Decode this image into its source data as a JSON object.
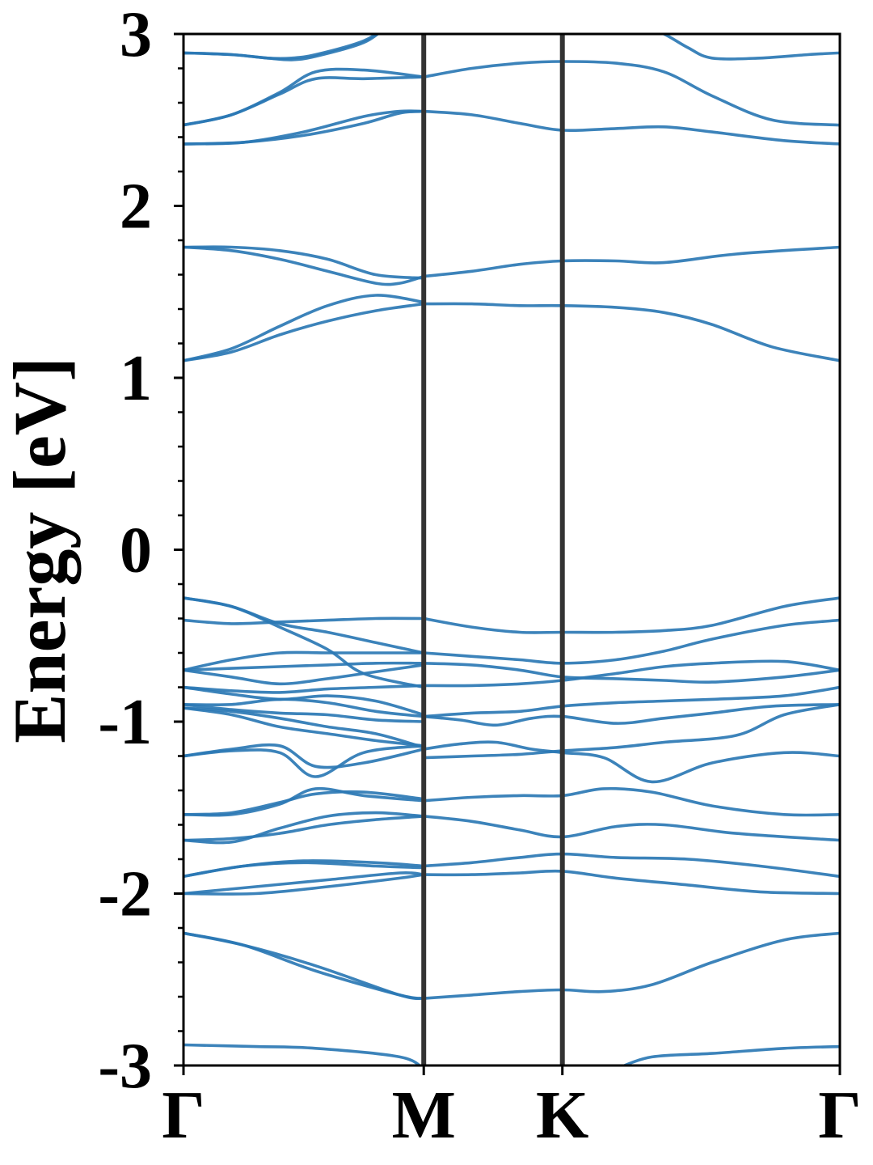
{
  "chart_data": {
    "type": "line",
    "title": "",
    "xlabel": "",
    "ylabel": "Energy [eV]",
    "ylim": [
      -3,
      3
    ],
    "yticks": [
      "3",
      "2",
      "1",
      "0",
      "-1",
      "-2",
      "-3"
    ],
    "ytick_values": [
      3,
      2,
      1,
      0,
      -1,
      -2,
      -3
    ],
    "minor_yticks_per_major": 4,
    "high_symbol_points": [
      {
        "label": "Γ",
        "k": 0
      },
      {
        "label": "M",
        "k": 1
      },
      {
        "label": "K",
        "k": 1.577
      },
      {
        "label": "Γ",
        "k": 2.732
      }
    ],
    "xlim": [
      0,
      2.732
    ],
    "band_color": "#2b78b4",
    "symline_color": "#333333",
    "grid": false,
    "legend": "none",
    "series": [
      {
        "x": [
          0,
          0.3,
          0.55,
          0.9,
          1.0
        ],
        "values": [
          -2.88,
          -2.89,
          -2.9,
          -2.95,
          -3.02
        ]
      },
      {
        "x": [
          1.8,
          1.95,
          2.2,
          2.5,
          2.732
        ],
        "values": [
          -3.02,
          -2.95,
          -2.93,
          -2.9,
          -2.89
        ]
      },
      {
        "x": [
          0,
          0.25,
          0.55,
          0.9,
          1.0
        ],
        "values": [
          -2.23,
          -2.3,
          -2.45,
          -2.59,
          -2.61
        ]
      },
      {
        "x": [
          0,
          0.25,
          0.55,
          0.9,
          1.0
        ],
        "values": [
          -2.23,
          -2.3,
          -2.42,
          -2.59,
          -2.61
        ]
      },
      {
        "x": [
          1.0,
          1.2,
          1.4,
          1.577,
          1.75,
          1.95,
          2.2,
          2.5,
          2.732
        ],
        "values": [
          -2.61,
          -2.59,
          -2.57,
          -2.56,
          -2.57,
          -2.53,
          -2.4,
          -2.27,
          -2.23
        ]
      },
      {
        "x": [
          0,
          0.3,
          0.6,
          0.9,
          1.0
        ],
        "values": [
          -2.0,
          -2.0,
          -1.96,
          -1.91,
          -1.89
        ]
      },
      {
        "x": [
          0,
          0.3,
          0.6,
          0.9,
          1.0
        ],
        "values": [
          -2.0,
          -1.96,
          -1.92,
          -1.88,
          -1.89
        ]
      },
      {
        "x": [
          1.0,
          1.2,
          1.4,
          1.577,
          1.8,
          2.1,
          2.4,
          2.732
        ],
        "values": [
          -1.89,
          -1.89,
          -1.88,
          -1.87,
          -1.91,
          -1.95,
          -1.99,
          -2.0
        ]
      },
      {
        "x": [
          0,
          0.25,
          0.5,
          0.8,
          1.0
        ],
        "values": [
          -1.9,
          -1.84,
          -1.81,
          -1.82,
          -1.84
        ]
      },
      {
        "x": [
          0,
          0.25,
          0.5,
          0.8,
          1.0
        ],
        "values": [
          -1.9,
          -1.84,
          -1.82,
          -1.84,
          -1.85
        ]
      },
      {
        "x": [
          1.0,
          1.2,
          1.4,
          1.577,
          1.8,
          2.1,
          2.4,
          2.732
        ],
        "values": [
          -1.84,
          -1.82,
          -1.79,
          -1.77,
          -1.79,
          -1.8,
          -1.84,
          -1.9
        ]
      },
      {
        "x": [
          0,
          0.2,
          0.4,
          0.6,
          0.8,
          1.0
        ],
        "values": [
          -1.69,
          -1.68,
          -1.65,
          -1.6,
          -1.57,
          -1.55
        ]
      },
      {
        "x": [
          0,
          0.2,
          0.4,
          0.6,
          0.8,
          1.0
        ],
        "values": [
          -1.69,
          -1.7,
          -1.62,
          -1.55,
          -1.53,
          -1.55
        ]
      },
      {
        "x": [
          1.0,
          1.2,
          1.4,
          1.577,
          1.8,
          2.0,
          2.3,
          2.732
        ],
        "values": [
          -1.55,
          -1.58,
          -1.63,
          -1.67,
          -1.61,
          -1.6,
          -1.65,
          -1.69
        ]
      },
      {
        "x": [
          0,
          0.2,
          0.4,
          0.55,
          0.75,
          1.0
        ],
        "values": [
          -1.54,
          -1.54,
          -1.48,
          -1.39,
          -1.43,
          -1.46
        ]
      },
      {
        "x": [
          0,
          0.2,
          0.4,
          0.55,
          0.75,
          1.0
        ],
        "values": [
          -1.54,
          -1.53,
          -1.47,
          -1.42,
          -1.41,
          -1.45
        ]
      },
      {
        "x": [
          1.0,
          1.2,
          1.4,
          1.577,
          1.75,
          1.95,
          2.2,
          2.5,
          2.732
        ],
        "values": [
          -1.46,
          -1.44,
          -1.43,
          -1.43,
          -1.39,
          -1.41,
          -1.49,
          -1.54,
          -1.54
        ]
      },
      {
        "x": [
          0,
          0.2,
          0.4,
          0.55,
          0.75,
          1.0
        ],
        "values": [
          -1.2,
          -1.16,
          -1.14,
          -1.26,
          -1.24,
          -1.16
        ]
      },
      {
        "x": [
          0,
          0.2,
          0.4,
          0.55,
          0.75,
          1.0
        ],
        "values": [
          -1.2,
          -1.17,
          -1.18,
          -1.32,
          -1.18,
          -1.14
        ]
      },
      {
        "x": [
          1.0,
          1.15,
          1.3,
          1.45,
          1.577,
          1.75,
          1.95,
          2.2,
          2.5,
          2.732
        ],
        "values": [
          -1.16,
          -1.13,
          -1.12,
          -1.16,
          -1.18,
          -1.21,
          -1.35,
          -1.24,
          -1.18,
          -1.2
        ]
      },
      {
        "x": [
          1.0,
          1.2,
          1.4,
          1.577,
          1.8,
          2.0,
          2.3,
          2.5,
          2.732
        ],
        "values": [
          -1.21,
          -1.2,
          -1.19,
          -1.17,
          -1.15,
          -1.12,
          -1.08,
          -0.96,
          -0.9
        ]
      },
      {
        "x": [
          0,
          0.2,
          0.4,
          0.6,
          0.8,
          1.0
        ],
        "values": [
          -0.92,
          -0.96,
          -1.03,
          -1.07,
          -1.11,
          -1.14
        ]
      },
      {
        "x": [
          0,
          0.2,
          0.4,
          0.6,
          0.8,
          1.0
        ],
        "values": [
          -0.92,
          -0.94,
          -0.98,
          -1.03,
          -1.07,
          -1.15
        ]
      },
      {
        "x": [
          0,
          0.2,
          0.4,
          0.6,
          0.8,
          1.0
        ],
        "values": [
          -0.9,
          -0.93,
          -0.95,
          -0.96,
          -0.99,
          -1.0
        ]
      },
      {
        "x": [
          0,
          0.2,
          0.4,
          0.6,
          0.8,
          1.0
        ],
        "values": [
          -0.9,
          -0.9,
          -0.87,
          -0.89,
          -0.94,
          -0.97
        ]
      },
      {
        "x": [
          1.0,
          1.15,
          1.3,
          1.45,
          1.577,
          1.8,
          2.0,
          2.2,
          2.45,
          2.732
        ],
        "values": [
          -0.97,
          -0.99,
          -1.02,
          -0.98,
          -0.97,
          -1.01,
          -0.98,
          -0.95,
          -0.91,
          -0.9
        ]
      },
      {
        "x": [
          1.0,
          1.2,
          1.4,
          1.577,
          1.8,
          2.0,
          2.2,
          2.5,
          2.732
        ],
        "values": [
          -0.97,
          -0.95,
          -0.94,
          -0.91,
          -0.89,
          -0.88,
          -0.87,
          -0.85,
          -0.8
        ]
      },
      {
        "x": [
          0,
          0.2,
          0.4,
          0.6,
          0.8,
          1.0
        ],
        "values": [
          -0.8,
          -0.84,
          -0.87,
          -0.85,
          -0.88,
          -0.96
        ]
      },
      {
        "x": [
          0,
          0.2,
          0.4,
          0.6,
          0.8,
          1.0
        ],
        "values": [
          -0.8,
          -0.82,
          -0.83,
          -0.81,
          -0.8,
          -0.79
        ]
      },
      {
        "x": [
          1.0,
          1.2,
          1.4,
          1.577,
          1.8,
          2.0,
          2.2,
          2.5,
          2.732
        ],
        "values": [
          -0.79,
          -0.79,
          -0.78,
          -0.76,
          -0.72,
          -0.68,
          -0.66,
          -0.65,
          -0.7
        ]
      },
      {
        "x": [
          0,
          0.2,
          0.4,
          0.6,
          0.8,
          1.0
        ],
        "values": [
          -0.7,
          -0.74,
          -0.78,
          -0.75,
          -0.71,
          -0.67
        ]
      },
      {
        "x": [
          0,
          0.2,
          0.4,
          0.6,
          0.8,
          1.0
        ],
        "values": [
          -0.7,
          -0.69,
          -0.68,
          -0.67,
          -0.66,
          -0.66
        ]
      },
      {
        "x": [
          0,
          0.2,
          0.4,
          0.6,
          0.8,
          1.0
        ],
        "values": [
          -0.7,
          -0.64,
          -0.6,
          -0.6,
          -0.6,
          -0.6
        ]
      },
      {
        "x": [
          1.0,
          1.2,
          1.4,
          1.577,
          1.8,
          2.0,
          2.2,
          2.5,
          2.732
        ],
        "values": [
          -0.66,
          -0.67,
          -0.7,
          -0.74,
          -0.75,
          -0.76,
          -0.77,
          -0.74,
          -0.7
        ]
      },
      {
        "x": [
          1.0,
          1.2,
          1.4,
          1.577,
          1.8,
          2.0,
          2.2,
          2.5,
          2.732
        ],
        "values": [
          -0.6,
          -0.62,
          -0.64,
          -0.66,
          -0.64,
          -0.59,
          -0.52,
          -0.44,
          -0.41
        ]
      },
      {
        "x": [
          0,
          0.2,
          0.4,
          0.6,
          0.75,
          1.0
        ],
        "values": [
          -0.28,
          -0.33,
          -0.45,
          -0.58,
          -0.72,
          -0.8
        ]
      },
      {
        "x": [
          0,
          0.2,
          0.4,
          0.6,
          0.8,
          1.0
        ],
        "values": [
          -0.28,
          -0.33,
          -0.43,
          -0.48,
          -0.54,
          -0.6
        ]
      },
      {
        "x": [
          0,
          0.2,
          0.4,
          0.6,
          0.8,
          1.0
        ],
        "values": [
          -0.41,
          -0.43,
          -0.42,
          -0.41,
          -0.4,
          -0.4
        ]
      },
      {
        "x": [
          1.0,
          1.2,
          1.4,
          1.577,
          1.8,
          2.0,
          2.2,
          2.5,
          2.732
        ],
        "values": [
          -0.4,
          -0.45,
          -0.48,
          -0.48,
          -0.48,
          -0.47,
          -0.44,
          -0.33,
          -0.28
        ]
      },
      {
        "x": [
          0,
          0.2,
          0.4,
          0.6,
          0.8,
          1.0
        ],
        "values": [
          1.1,
          1.15,
          1.25,
          1.33,
          1.39,
          1.43
        ]
      },
      {
        "x": [
          0,
          0.2,
          0.4,
          0.6,
          0.8,
          1.0
        ],
        "values": [
          1.1,
          1.17,
          1.3,
          1.42,
          1.48,
          1.44
        ]
      },
      {
        "x": [
          1.0,
          1.2,
          1.4,
          1.577,
          1.8,
          2.0,
          2.2,
          2.45,
          2.732
        ],
        "values": [
          1.43,
          1.43,
          1.42,
          1.42,
          1.41,
          1.38,
          1.31,
          1.18,
          1.1
        ]
      },
      {
        "x": [
          0,
          0.2,
          0.4,
          0.6,
          0.8,
          1.0
        ],
        "values": [
          1.76,
          1.76,
          1.74,
          1.69,
          1.6,
          1.58
        ]
      },
      {
        "x": [
          0,
          0.2,
          0.4,
          0.6,
          0.8,
          0.9,
          1.0
        ],
        "values": [
          1.76,
          1.74,
          1.69,
          1.62,
          1.55,
          1.55,
          1.59
        ]
      },
      {
        "x": [
          1.0,
          1.2,
          1.4,
          1.577,
          1.8,
          2.0,
          2.3,
          2.732
        ],
        "values": [
          1.59,
          1.62,
          1.66,
          1.68,
          1.68,
          1.67,
          1.72,
          1.76
        ]
      },
      {
        "x": [
          0,
          0.25,
          0.5,
          0.75,
          0.9,
          1.0
        ],
        "values": [
          2.36,
          2.37,
          2.41,
          2.48,
          2.54,
          2.55
        ]
      },
      {
        "x": [
          0,
          0.25,
          0.5,
          0.75,
          0.9,
          1.0
        ],
        "values": [
          2.36,
          2.37,
          2.43,
          2.52,
          2.55,
          2.55
        ]
      },
      {
        "x": [
          1.0,
          1.2,
          1.4,
          1.577,
          1.8,
          2.0,
          2.2,
          2.5,
          2.732
        ],
        "values": [
          2.55,
          2.53,
          2.48,
          2.44,
          2.45,
          2.46,
          2.43,
          2.38,
          2.36
        ]
      },
      {
        "x": [
          0,
          0.2,
          0.4,
          0.55,
          0.75,
          1.0
        ],
        "values": [
          2.47,
          2.53,
          2.65,
          2.74,
          2.74,
          2.75
        ]
      },
      {
        "x": [
          0,
          0.2,
          0.4,
          0.55,
          0.75,
          1.0
        ],
        "values": [
          2.47,
          2.53,
          2.66,
          2.78,
          2.79,
          2.75
        ]
      },
      {
        "x": [
          1.0,
          1.2,
          1.4,
          1.577,
          1.8,
          2.0,
          2.2,
          2.45,
          2.732
        ],
        "values": [
          2.75,
          2.8,
          2.83,
          2.84,
          2.83,
          2.78,
          2.64,
          2.5,
          2.47
        ]
      },
      {
        "x": [
          0,
          0.2,
          0.35,
          0.45,
          0.55,
          0.75,
          0.85
        ],
        "values": [
          2.89,
          2.88,
          2.86,
          2.85,
          2.87,
          2.95,
          3.05
        ]
      },
      {
        "x": [
          0,
          0.2,
          0.35,
          0.45,
          0.55,
          0.75,
          0.85
        ],
        "values": [
          2.89,
          2.88,
          2.86,
          2.86,
          2.88,
          2.96,
          3.05
        ]
      },
      {
        "x": [
          1.9,
          2.0,
          2.1,
          2.2,
          2.4,
          2.6,
          2.732
        ],
        "values": [
          3.05,
          3.0,
          2.92,
          2.86,
          2.86,
          2.88,
          2.89
        ]
      }
    ]
  }
}
